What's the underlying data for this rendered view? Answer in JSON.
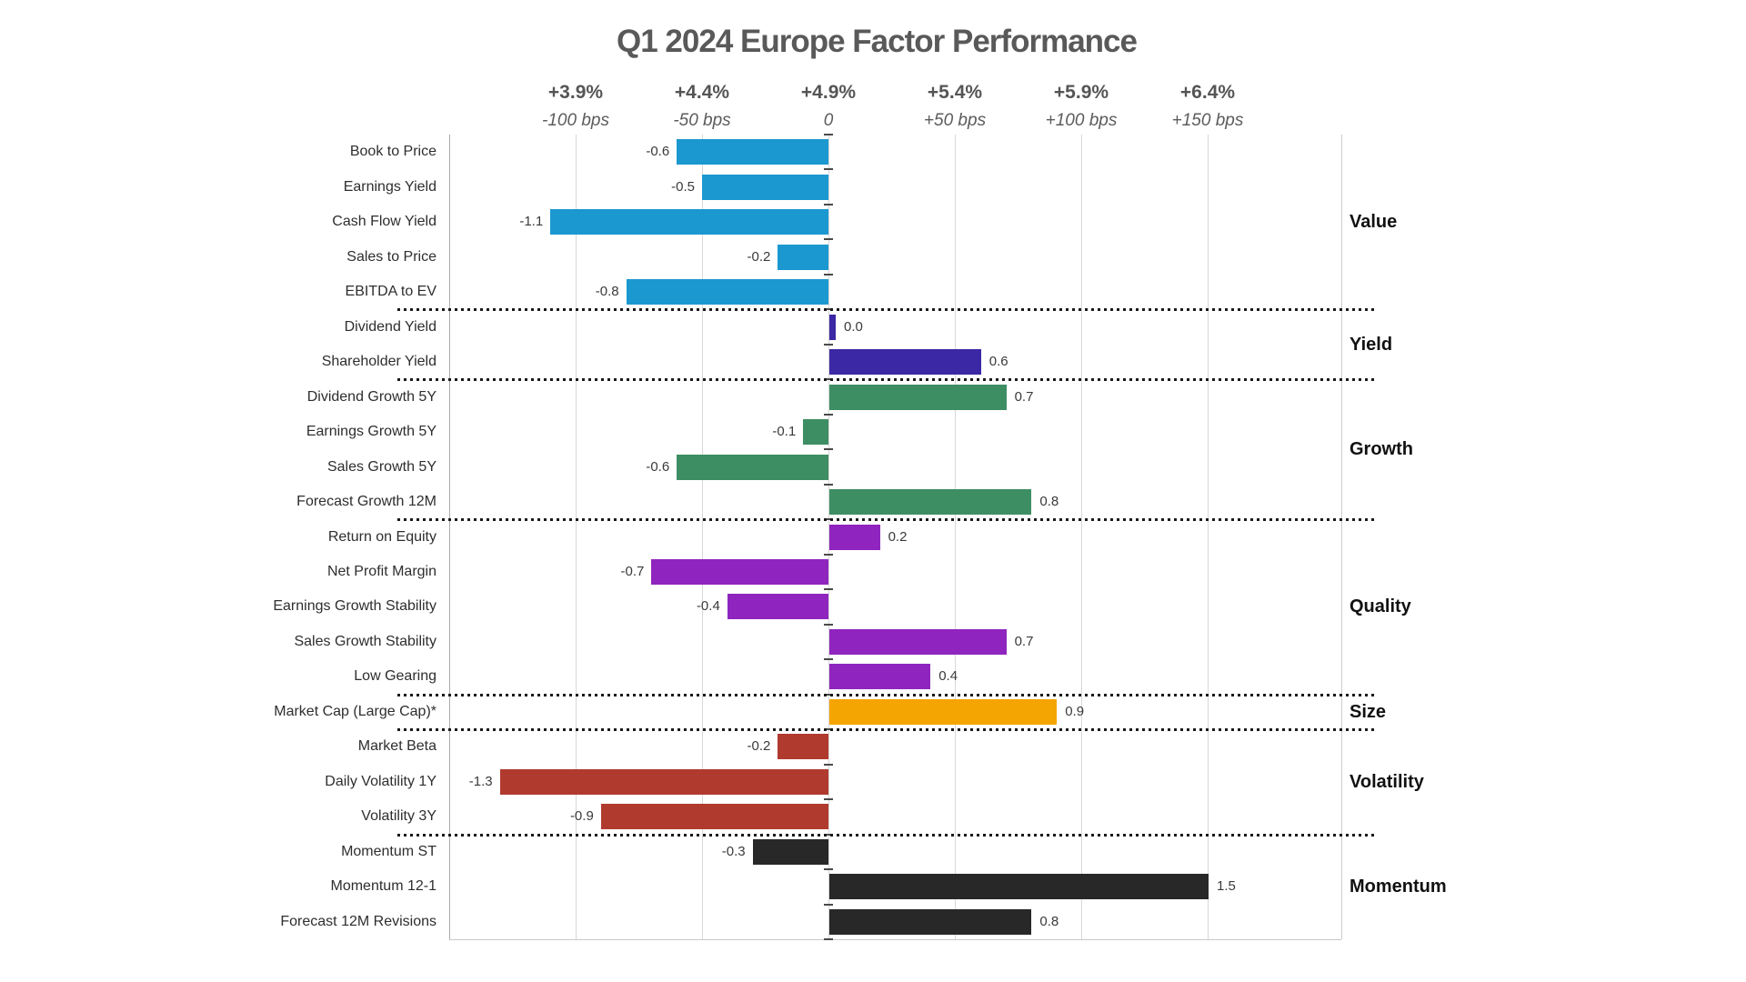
{
  "title": "Q1 2024 Europe Factor Performance",
  "chart_data": {
    "type": "bar",
    "orientation": "horizontal",
    "title": "Q1 2024 Europe Factor Performance",
    "value_unit": "percent (1.0 = 100 bps)",
    "axis_top": {
      "percent_labels": [
        "+3.9%",
        "+4.4%",
        "+4.9%",
        "+5.4%",
        "+5.9%",
        "+6.4%"
      ],
      "bps_labels": [
        "-100 bps",
        "-50 bps",
        "0",
        "+50 bps",
        "+100 bps",
        "+150 bps"
      ],
      "bps_values": [
        -100,
        -50,
        0,
        50,
        100,
        150
      ],
      "xlim_bps": [
        -150,
        203
      ],
      "gridline_step_bps": 50,
      "grid": true,
      "legend": "none"
    },
    "groups": [
      {
        "name": "Value",
        "color": "#1B98D0",
        "factors": [
          {
            "label": "Book to Price",
            "value": -0.6
          },
          {
            "label": "Earnings Yield",
            "value": -0.5
          },
          {
            "label": "Cash Flow Yield",
            "value": -1.1
          },
          {
            "label": "Sales to Price",
            "value": -0.2
          },
          {
            "label": "EBITDA to EV",
            "value": -0.8
          }
        ]
      },
      {
        "name": "Yield",
        "color": "#3A28A5",
        "factors": [
          {
            "label": "Dividend Yield",
            "value": 0.0
          },
          {
            "label": "Shareholder Yield",
            "value": 0.6
          }
        ]
      },
      {
        "name": "Growth",
        "color": "#3E8E63",
        "factors": [
          {
            "label": "Dividend Growth 5Y",
            "value": 0.7
          },
          {
            "label": "Earnings Growth 5Y",
            "value": -0.1
          },
          {
            "label": "Sales Growth 5Y",
            "value": -0.6
          },
          {
            "label": "Forecast Growth 12M",
            "value": 0.8
          }
        ]
      },
      {
        "name": "Quality",
        "color": "#8F25BE",
        "factors": [
          {
            "label": "Return on Equity",
            "value": 0.2
          },
          {
            "label": "Net Profit Margin",
            "value": -0.7
          },
          {
            "label": "Earnings Growth Stability",
            "value": -0.4
          },
          {
            "label": "Sales Growth Stability",
            "value": 0.7
          },
          {
            "label": "Low Gearing",
            "value": 0.4
          }
        ]
      },
      {
        "name": "Size",
        "color": "#F5A502",
        "factors": [
          {
            "label": "Market Cap (Large Cap)*",
            "value": 0.9
          }
        ]
      },
      {
        "name": "Volatility",
        "color": "#B03A2E",
        "factors": [
          {
            "label": "Market Beta",
            "value": -0.2
          },
          {
            "label": "Daily Volatility 1Y",
            "value": -1.3
          },
          {
            "label": "Volatility 3Y",
            "value": -0.9
          }
        ]
      },
      {
        "name": "Momentum",
        "color": "#282828",
        "factors": [
          {
            "label": "Momentum ST",
            "value": -0.3
          },
          {
            "label": "Momentum 12-1",
            "value": 1.5
          },
          {
            "label": "Forecast 12M Revisions",
            "value": 0.8
          }
        ]
      }
    ]
  }
}
